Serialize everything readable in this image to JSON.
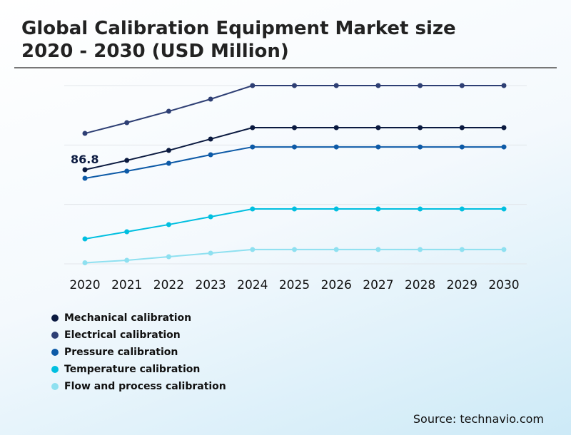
{
  "title_line1": "Global Calibration Equipment Market size",
  "title_line2": "2020 - 2030 (USD Million)",
  "source": "Source: technavio.com",
  "chart_data": {
    "type": "line",
    "categories": [
      "2020",
      "2021",
      "2022",
      "2023",
      "2024",
      "2025",
      "2026",
      "2027",
      "2028",
      "2029",
      "2030"
    ],
    "ylim": [
      0,
      164.4
    ],
    "grid": true,
    "legend_placement": "bottom-left",
    "annotations": [
      {
        "series": "Mechanical calibration",
        "x": "2020",
        "label": "86.8"
      }
    ],
    "series": [
      {
        "name": "Mechanical calibration",
        "color": "#0b1a40",
        "values": [
          86.8,
          95.4,
          104.6,
          115.1,
          125.6,
          125.6,
          125.6,
          125.6,
          125.6,
          125.6,
          125.6
        ]
      },
      {
        "name": "Electrical calibration",
        "color": "#2e3f74",
        "values": [
          120.3,
          130.2,
          140.7,
          151.9,
          164.4,
          164.4,
          164.4,
          164.4,
          164.4,
          164.4,
          164.4
        ]
      },
      {
        "name": "Pressure calibration",
        "color": "#0d5aa7",
        "values": [
          78.9,
          85.5,
          92.7,
          100.6,
          107.8,
          107.8,
          107.8,
          107.8,
          107.8,
          107.8,
          107.8
        ]
      },
      {
        "name": "Temperature calibration",
        "color": "#00bfe0",
        "values": [
          23.0,
          29.6,
          36.2,
          43.4,
          50.6,
          50.6,
          50.6,
          50.6,
          50.6,
          50.6,
          50.6
        ]
      },
      {
        "name": "Flow and process calibration",
        "color": "#8ee0f0",
        "values": [
          1.0,
          3.3,
          6.6,
          9.9,
          13.2,
          13.2,
          13.2,
          13.2,
          13.2,
          13.2,
          13.2
        ]
      }
    ]
  }
}
